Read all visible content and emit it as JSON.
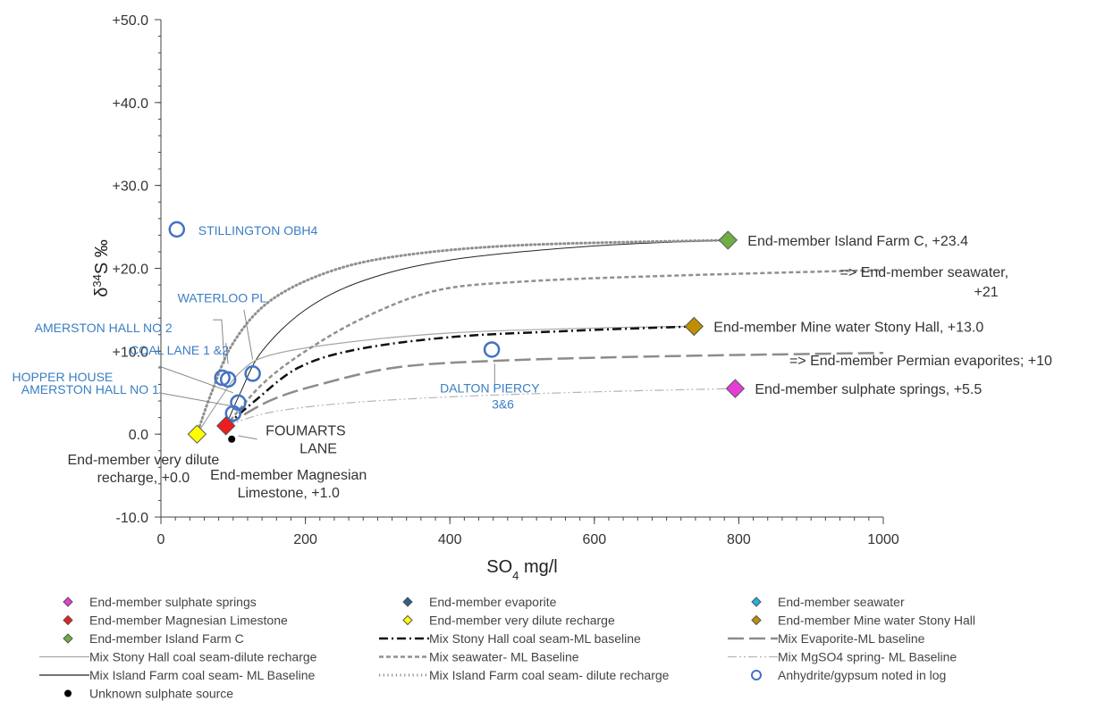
{
  "chart_data": {
    "type": "scatter",
    "xlabel": "SO",
    "xlabel_sub": "4",
    "xlabel_unit": " mg/l",
    "ylabel_pre": "δ",
    "ylabel_sup": "34",
    "ylabel_post": "S ‰",
    "xlim": [
      0,
      1000
    ],
    "ylim": [
      -10,
      50
    ],
    "x_ticks": [
      {
        "v": 0,
        "label": "0"
      },
      {
        "v": 200,
        "label": "200"
      },
      {
        "v": 400,
        "label": "400"
      },
      {
        "v": 600,
        "label": "600"
      },
      {
        "v": 800,
        "label": "800"
      },
      {
        "v": 1000,
        "label": "1000"
      }
    ],
    "y_ticks": [
      {
        "v": -10,
        "label": "-10.0"
      },
      {
        "v": 0,
        "label": "0.0"
      },
      {
        "v": 10,
        "label": "+10.0"
      },
      {
        "v": 20,
        "label": "+20.0"
      },
      {
        "v": 30,
        "label": "+30.0"
      },
      {
        "v": 40,
        "label": "+40.0"
      },
      {
        "v": 50,
        "label": "+50.0"
      }
    ],
    "end_members": [
      {
        "name": "End-member sulphate springs",
        "x": 795,
        "y": 5.5,
        "color": "#e83cd6",
        "label_lines": [
          "End-member sulphate springs, +5.5"
        ],
        "anchor": "right"
      },
      {
        "name": "End-member Magnesian Limestone",
        "x": 90,
        "y": 1.0,
        "color": "#ee1c1c",
        "label_lines": [
          "End-member Magnesian",
          "Limestone, +1.0"
        ],
        "anchor": "below"
      },
      {
        "name": "End-member Island Farm C",
        "x": 785,
        "y": 23.4,
        "color": "#70ad47",
        "label_lines": [
          "End-member Island Farm C, +23.4"
        ],
        "anchor": "right"
      },
      {
        "name": "End-member very dilute recharge",
        "x": 50,
        "y": 0.0,
        "color": "#ffff00",
        "label_lines": [
          "End-member very dilute",
          "recharge, +0.0"
        ],
        "anchor": "belowleft"
      },
      {
        "name": "End-member Mine water Stony Hall",
        "x": 738,
        "y": 13.0,
        "color": "#bf8f00",
        "label_lines": [
          "End-member Mine  water Stony Hall,  +13.0"
        ],
        "anchor": "right"
      }
    ],
    "text_labels": [
      {
        "x": 940,
        "y": 19.0,
        "lines": [
          "=> End-member seawater,",
          "+21"
        ]
      },
      {
        "x": 870,
        "y": 8.3,
        "lines": [
          "=> End-member Permian evaporites; +10"
        ]
      }
    ],
    "mixing_lines": [
      {
        "name": "Mix Island Farm coal seam- ML Baseline",
        "color": "#222222",
        "width": 1,
        "dash": "",
        "points": [
          [
            90,
            1.0
          ],
          [
            110,
            5
          ],
          [
            140,
            10
          ],
          [
            200,
            15
          ],
          [
            280,
            18.5
          ],
          [
            400,
            21
          ],
          [
            600,
            22.7
          ],
          [
            785,
            23.4
          ]
        ]
      },
      {
        "name": "Mix Stony Hall coal seam-dilute recharge",
        "color": "#a6a6a6",
        "width": 1.2,
        "dash": "",
        "points": [
          [
            50,
            0.0
          ],
          [
            80,
            4
          ],
          [
            110,
            7.5
          ],
          [
            150,
            9.5
          ],
          [
            250,
            11
          ],
          [
            400,
            12.2
          ],
          [
            600,
            12.8
          ],
          [
            738,
            13.0
          ]
        ]
      },
      {
        "name": "Mix Island Farm coal seam- dilute recharge",
        "color": "#909090",
        "width": 3,
        "dash": "1.2,3.5",
        "points": [
          [
            50,
            0.0
          ],
          [
            70,
            5
          ],
          [
            100,
            11
          ],
          [
            150,
            16
          ],
          [
            230,
            19.5
          ],
          [
            330,
            21.5
          ],
          [
            500,
            22.8
          ],
          [
            785,
            23.4
          ]
        ]
      },
      {
        "name": "Mix seawater- ML Baseline",
        "color": "#909090",
        "width": 2.5,
        "dash": "5,3",
        "points": [
          [
            90,
            1.0
          ],
          [
            140,
            6
          ],
          [
            200,
            10
          ],
          [
            280,
            14
          ],
          [
            380,
            17.3
          ],
          [
            500,
            18.4
          ],
          [
            700,
            19.1
          ],
          [
            1000,
            19.8
          ]
        ]
      },
      {
        "name": "Mix Stony Hall coal seam-ML baseline",
        "color": "#111111",
        "width": 2.5,
        "dash": "10,4,2,4",
        "points": [
          [
            90,
            1.0
          ],
          [
            130,
            4
          ],
          [
            190,
            8
          ],
          [
            270,
            10.2
          ],
          [
            400,
            11.7
          ],
          [
            550,
            12.4
          ],
          [
            738,
            13.0
          ]
        ]
      },
      {
        "name": "Mix Evaporite-ML baseline",
        "color": "#8c8c8c",
        "width": 2.5,
        "dash": "18,6",
        "points": [
          [
            90,
            1.0
          ],
          [
            150,
            4
          ],
          [
            220,
            6
          ],
          [
            330,
            8.1
          ],
          [
            480,
            8.9
          ],
          [
            700,
            9.4
          ],
          [
            1000,
            9.8
          ]
        ]
      },
      {
        "name": "Mix MgSO4 spring- ML Baseline",
        "color": "#b5b5b5",
        "width": 1.2,
        "dash": "10,3,2,3,2,3",
        "points": [
          [
            90,
            1.0
          ],
          [
            150,
            2.6
          ],
          [
            250,
            3.7
          ],
          [
            400,
            4.5
          ],
          [
            600,
            5.1
          ],
          [
            795,
            5.5
          ]
        ]
      }
    ],
    "anhydrite_points": [
      {
        "x": 22,
        "y": 24.7,
        "label_lines": [
          "STILLINGTON  OBH4"
        ],
        "label_dx": 24,
        "label_dy": 6,
        "leader": []
      },
      {
        "x": 127,
        "y": 7.3,
        "label_lines": [
          "WATERLOO PL"
        ],
        "label_dx": -84,
        "label_dy": -80,
        "leader": [
          [
            115,
            15
          ],
          [
            127,
            9
          ]
        ]
      },
      {
        "x": 85,
        "y": 6.8,
        "label_lines": [
          "AMERSTON HALL NO 2"
        ],
        "label_dx": -210,
        "label_dy": -51,
        "leader": [
          [
            72,
            13.8
          ],
          [
            84,
            13.8
          ],
          [
            88,
            8.5
          ]
        ]
      },
      {
        "x": 93,
        "y": 6.6,
        "label_lines": [
          "COAL LANE 1 &2"
        ],
        "label_dx": -110,
        "label_dy": -28,
        "leader": [
          [
            90,
            11
          ],
          [
            93,
            8.5
          ]
        ]
      },
      {
        "x": 107,
        "y": 3.8,
        "label_lines": [
          "HOPPER HOUSE"
        ],
        "label_dx": -253,
        "label_dy": -24,
        "leader": [
          [
            -3,
            8.2
          ],
          [
            100,
            5
          ]
        ]
      },
      {
        "x": 100,
        "y": 2.5,
        "label_lines": [
          "AMERSTON HALL NO 1"
        ],
        "label_dx": -237,
        "label_dy": -22,
        "leader": [
          [
            -3,
            5
          ],
          [
            98,
            3.4
          ]
        ]
      },
      {
        "x": 458,
        "y": 10.2,
        "label_lines": [
          "DALTON PIERCY",
          "3&6"
        ],
        "label_dx": -58,
        "label_dy": 48,
        "leader": [
          [
            462,
            8.5
          ],
          [
            462,
            5.4
          ]
        ]
      }
    ],
    "unknown_points": [
      {
        "x": 98,
        "y": -0.6,
        "label_lines": [
          "FOUMARTS",
          "LANE"
        ],
        "label_dx": 38,
        "label_dy": -4,
        "leader": [
          [
            107,
            -0.2
          ],
          [
            133,
            -0.6
          ]
        ]
      }
    ],
    "legend": [
      {
        "label": "End-member sulphate springs",
        "kind": "diamond",
        "color": "#e83cd6",
        "col": 0,
        "row": 0
      },
      {
        "label": "End-member evaporite",
        "kind": "diamond",
        "color": "#2f5f8a",
        "col": 1,
        "row": 0
      },
      {
        "label": "End-member seawater",
        "kind": "diamond",
        "color": "#1fb2e8",
        "col": 2,
        "row": 0
      },
      {
        "label": "End-member Magnesian Limestone",
        "kind": "diamond",
        "color": "#ee1c1c",
        "col": 0,
        "row": 1
      },
      {
        "label": "End-member very dilute recharge",
        "kind": "diamond",
        "color": "#ffff00",
        "col": 1,
        "row": 1
      },
      {
        "label": "End-member Mine water Stony Hall",
        "kind": "diamond",
        "color": "#bf8f00",
        "col": 2,
        "row": 1
      },
      {
        "label": "End-member Island Farm C",
        "kind": "diamond",
        "color": "#70ad47",
        "col": 0,
        "row": 2
      },
      {
        "label": "Mix Stony Hall coal seam-ML baseline",
        "kind": "line",
        "color": "#111111",
        "width": 2.5,
        "dash": "10,4,2,4",
        "col": 1,
        "row": 2
      },
      {
        "label": "Mix Evaporite-ML baseline",
        "kind": "line",
        "color": "#8c8c8c",
        "width": 2.5,
        "dash": "18,6",
        "col": 2,
        "row": 2
      },
      {
        "label": "Mix Stony Hall coal seam-dilute recharge",
        "kind": "line",
        "color": "#a6a6a6",
        "width": 1.2,
        "dash": "",
        "col": 0,
        "row": 3
      },
      {
        "label": "Mix seawater- ML Baseline",
        "kind": "line",
        "color": "#909090",
        "width": 2.5,
        "dash": "5,3",
        "col": 1,
        "row": 3
      },
      {
        "label": "Mix MgSO4 spring- ML Baseline",
        "kind": "line",
        "color": "#b5b5b5",
        "width": 1.2,
        "dash": "10,3,2,3,2,3",
        "col": 2,
        "row": 3
      },
      {
        "label": "Mix Island Farm coal seam- ML Baseline",
        "kind": "line",
        "color": "#222222",
        "width": 1.2,
        "dash": "",
        "col": 0,
        "row": 4
      },
      {
        "label": "Mix Island Farm coal seam- dilute recharge",
        "kind": "line",
        "color": "#909090",
        "width": 3,
        "dash": "1.2,3.5",
        "col": 1,
        "row": 4
      },
      {
        "label": "Anhydrite/gypsum noted in log",
        "kind": "circle",
        "color": "#4472c4",
        "col": 2,
        "row": 4
      },
      {
        "label": "Unknown sulphate source",
        "kind": "dot",
        "color": "#000000",
        "col": 0,
        "row": 5
      }
    ]
  }
}
